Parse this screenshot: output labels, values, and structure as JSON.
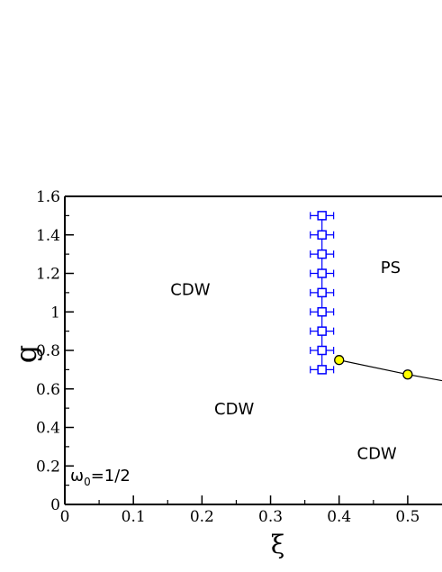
{
  "chart_data": {
    "type": "scatter",
    "xlabel": "ξ",
    "ylabel": "g",
    "xlim": [
      0,
      0.55
    ],
    "ylim": [
      0,
      1.6
    ],
    "x_ticks": [
      0,
      0.1,
      0.2,
      0.3,
      0.4,
      0.5
    ],
    "x_tick_labels": [
      "0",
      "0.1",
      "0.2",
      "0.3",
      "0.4",
      "0.5"
    ],
    "y_ticks": [
      0,
      0.2,
      0.4,
      0.6,
      0.8,
      1,
      1.2,
      1.4,
      1.6
    ],
    "y_tick_labels": [
      "0",
      "0.2",
      "0.4",
      "0.6",
      "0.8",
      "1",
      "1.2",
      "1.4",
      "1.6"
    ],
    "grid": false,
    "series": [
      {
        "marker": "open-square",
        "color": "#0000ff",
        "x_error": 0.017,
        "points": [
          {
            "x": 0.375,
            "y": 0.7
          },
          {
            "x": 0.375,
            "y": 0.8
          },
          {
            "x": 0.375,
            "y": 0.9
          },
          {
            "x": 0.375,
            "y": 1.0
          },
          {
            "x": 0.375,
            "y": 1.1
          },
          {
            "x": 0.375,
            "y": 1.2
          },
          {
            "x": 0.375,
            "y": 1.3
          },
          {
            "x": 0.375,
            "y": 1.4
          },
          {
            "x": 0.375,
            "y": 1.5
          }
        ]
      },
      {
        "marker": "filled-circle",
        "color": "#ffff00",
        "line_color": "#000000",
        "points": [
          {
            "x": 0.4,
            "y": 0.75
          },
          {
            "x": 0.5,
            "y": 0.675
          }
        ],
        "line_extends_to": {
          "x": 0.55,
          "y": 0.643
        }
      }
    ],
    "annotations": [
      {
        "text": "CDW",
        "x": 0.183,
        "y": 1.115
      },
      {
        "text": "CDW",
        "x": 0.247,
        "y": 0.495
      },
      {
        "text": "CDW",
        "x": 0.455,
        "y": 0.265
      },
      {
        "text": "PS",
        "x": 0.475,
        "y": 1.23
      }
    ],
    "parameter_note": {
      "symbol": "ω",
      "subscript": "0",
      "value": "=1/2"
    }
  }
}
